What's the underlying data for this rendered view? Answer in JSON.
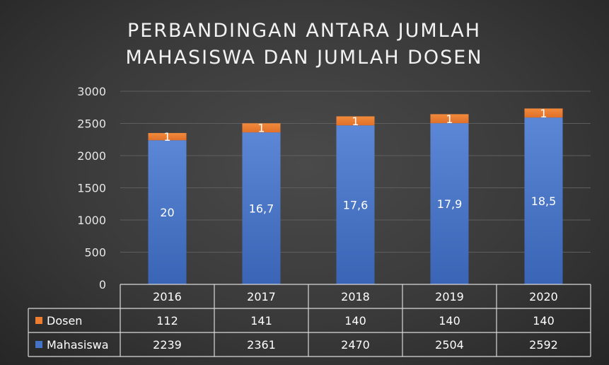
{
  "chart_data": {
    "type": "bar",
    "stacked": true,
    "title": "PERBANDINGAN ANTARA JUMLAH MAHASISWA DAN JUMLAH DOSEN",
    "title_lines": [
      "PERBANDINGAN ANTARA JUMLAH",
      "MAHASISWA DAN JUMLAH DOSEN"
    ],
    "categories": [
      "2016",
      "2017",
      "2018",
      "2019",
      "2020"
    ],
    "ylim": [
      0,
      3000
    ],
    "yticks": [
      0,
      500,
      1000,
      1500,
      2000,
      2500,
      3000
    ],
    "grid": true,
    "legend_position": "data-table",
    "series": [
      {
        "name": "Mahasiswa",
        "color": "#4472c4",
        "values": [
          2239,
          2361,
          2470,
          2504,
          2592
        ],
        "data_labels": [
          "20",
          "16,7",
          "17,6",
          "17,9",
          "18,5"
        ]
      },
      {
        "name": "Dosen",
        "color": "#ed7d31",
        "values": [
          112,
          141,
          140,
          140,
          140
        ],
        "data_labels": [
          "1",
          "1",
          "1",
          "1",
          "1"
        ]
      }
    ],
    "table_rows": [
      "Dosen",
      "Mahasiswa"
    ]
  }
}
